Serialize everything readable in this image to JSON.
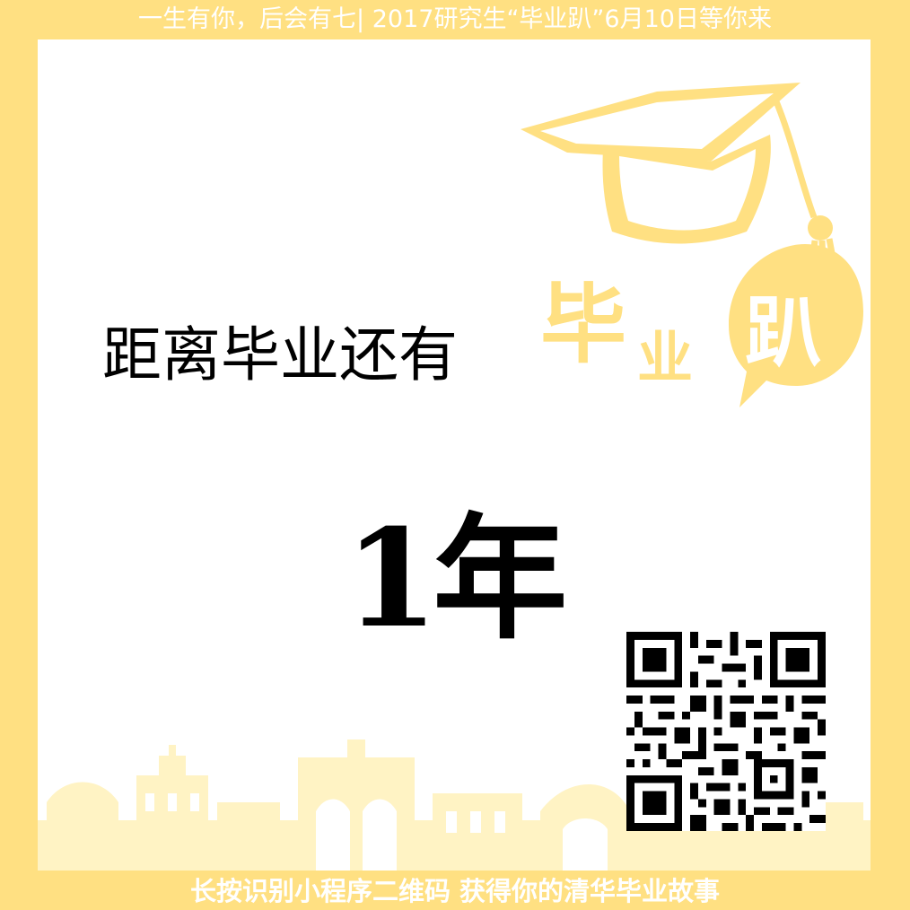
{
  "header": {
    "banner_text": "一生有你，后会有七| 2017研究生“毕业趴”6月10日等你来"
  },
  "logo": {
    "char_1": "毕",
    "char_2": "业",
    "char_3": "趴",
    "color": "#ffe082"
  },
  "main": {
    "title": "距离毕业还有",
    "countdown": "1年"
  },
  "footer": {
    "banner_text": "长按识别小程序二维码 获得你的清华毕业故事"
  },
  "colors": {
    "frame": "#ffe082",
    "card": "#ffffff",
    "text": "#000000"
  },
  "icons": [
    "graduation-cap-icon",
    "qr-code-icon",
    "campus-skyline-icon"
  ]
}
